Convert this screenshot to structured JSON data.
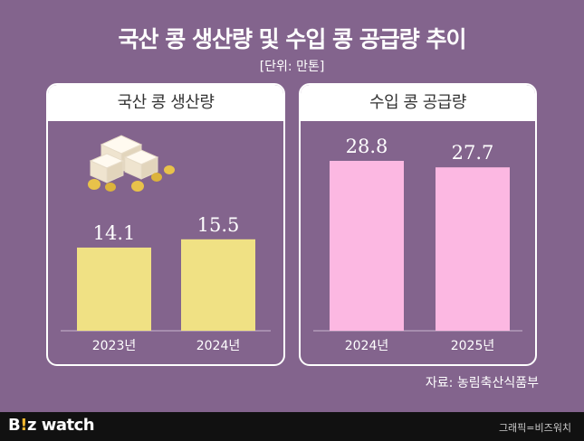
{
  "title": "국산 콩 생산량 및 수입 콩 공급량 추이",
  "unit": "[단위: 만톤]",
  "source": "자료: 농림축산식품부",
  "footer": {
    "logo_b": "B",
    "logo_accent": "!",
    "logo_z": "z",
    "logo_watch": "watch",
    "credit": "그래픽=비즈워치"
  },
  "colors": {
    "background": "#83648d",
    "domestic_bar": "#f0e184",
    "import_bar": "#fcb8e2"
  },
  "chart_data": [
    {
      "type": "bar",
      "title": "국산 콩 생산량",
      "categories": [
        "2023년",
        "2024년"
      ],
      "values": [
        14.1,
        15.5
      ],
      "value_labels": [
        "14.1",
        "15.5"
      ],
      "color": "#f0e184"
    },
    {
      "type": "bar",
      "title": "수입 콩 공급량",
      "categories": [
        "2024년",
        "2025년"
      ],
      "values": [
        28.8,
        27.7
      ],
      "value_labels": [
        "28.8",
        "27.7"
      ],
      "color": "#fcb8e2"
    }
  ]
}
